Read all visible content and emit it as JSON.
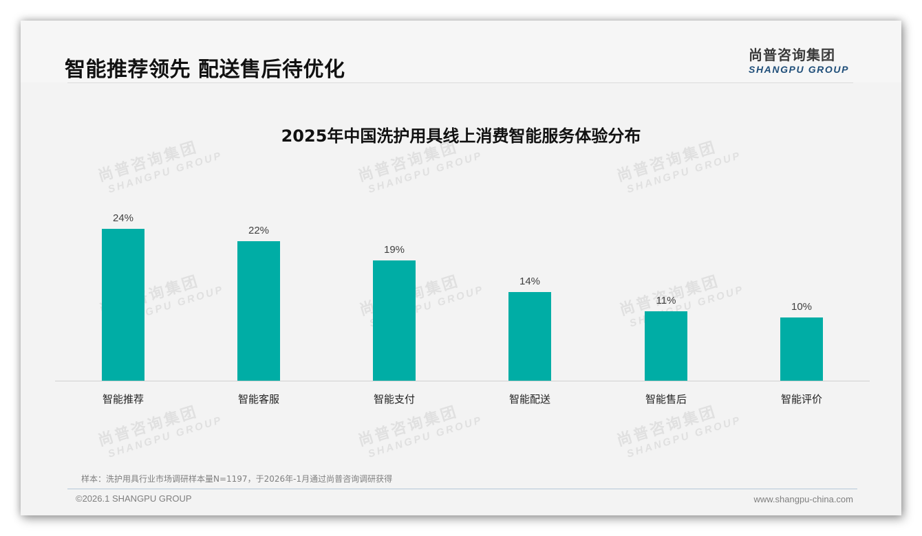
{
  "header": {
    "title": "智能推荐领先 配送售后待优化",
    "logo_cn": "尚普咨询集团",
    "logo_en": "SHANGPU GROUP"
  },
  "watermark": {
    "cn": "尚普咨询集团",
    "en": "SHANGPU GROUP"
  },
  "colors": {
    "bar": "#00ada5",
    "logo_en": "#1f4e79",
    "background": "#f3f3f3"
  },
  "chart_data": {
    "type": "bar",
    "title": "2025年中国洗护用具线上消费智能服务体验分布",
    "categories": [
      "智能推荐",
      "智能客服",
      "智能支付",
      "智能配送",
      "智能售后",
      "智能评价"
    ],
    "values": [
      24,
      22,
      19,
      14,
      11,
      10
    ],
    "value_labels": [
      "24%",
      "22%",
      "19%",
      "14%",
      "11%",
      "10%"
    ],
    "unit": "%",
    "xlabel": "",
    "ylabel": "",
    "ylim": [
      0,
      24
    ],
    "grid": false,
    "legend": null,
    "y_axis_visible": false
  },
  "footer": {
    "note": "样本：洗护用具行业市场调研样本量N=1197，于2026年-1月通过尚普咨询调研获得",
    "copyright": "©2026.1 SHANGPU GROUP",
    "website": "www.shangpu-china.com"
  }
}
